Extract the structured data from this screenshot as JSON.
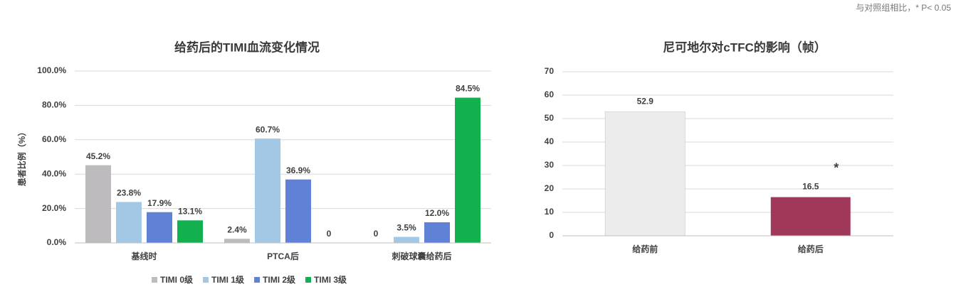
{
  "note": "与对照组相比，* P< 0.05",
  "chart_data": [
    {
      "type": "grouped-bar",
      "title": "给药后的TIMI血流变化情况",
      "y_label": "患者比例（%）",
      "categories": [
        "基线时",
        "PTCA后",
        "刺破球囊给药后"
      ],
      "series": [
        {
          "name": "TIMI 0级",
          "color": "#bdbbbd",
          "values": [
            45.2,
            2.4,
            0
          ],
          "value_labels": [
            "45.2%",
            "2.4%",
            "0"
          ]
        },
        {
          "name": "TIMI 1级",
          "color": "#a3c8e6",
          "values": [
            23.8,
            60.7,
            3.5
          ],
          "value_labels": [
            "23.8%",
            "60.7%",
            "3.5%"
          ]
        },
        {
          "name": "TIMI 2级",
          "color": "#5f82d6",
          "values": [
            17.9,
            36.9,
            12
          ],
          "value_labels": [
            "17.9%",
            "36.9%",
            "12.0%"
          ]
        },
        {
          "name": "TIMI 3级",
          "color": "#12b04e",
          "values": [
            13.1,
            0,
            84.5
          ],
          "value_labels": [
            "13.1%",
            "0",
            "84.5%"
          ]
        }
      ],
      "ylim": [
        0,
        100
      ],
      "yticks": [
        {
          "value": 0,
          "label": "0.0%"
        },
        {
          "value": 20,
          "label": "20.0%"
        },
        {
          "value": 40,
          "label": "40.0%"
        },
        {
          "value": 60,
          "label": "60.0%"
        },
        {
          "value": 80,
          "label": "80.0%"
        },
        {
          "value": 100,
          "label": "100.0%"
        }
      ],
      "grid": true,
      "legend": "bottom"
    },
    {
      "type": "bar",
      "title": "尼可地尔对cTFC的影响（帧）",
      "categories": [
        "给药前",
        "给药后"
      ],
      "values": [
        52.9,
        16.5
      ],
      "colors": [
        "#ececec",
        "#a0385a"
      ],
      "annotation": "*",
      "ylim": [
        0,
        70
      ],
      "yticks": [
        0,
        10,
        20,
        30,
        40,
        50,
        60,
        70
      ],
      "grid": true
    }
  ]
}
